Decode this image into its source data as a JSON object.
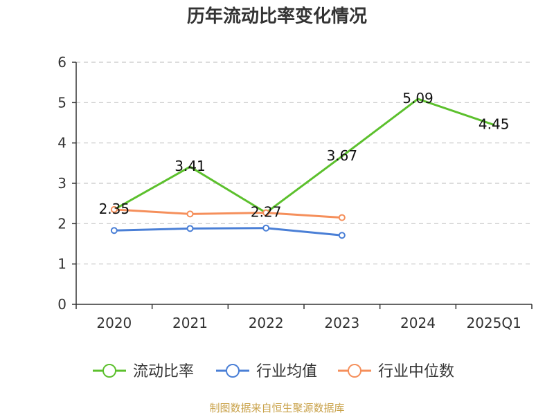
{
  "chart_data": {
    "type": "line",
    "title": "历年流动比率变化情况",
    "categories": [
      "2020",
      "2021",
      "2022",
      "2023",
      "2024",
      "2025Q1"
    ],
    "ylim": [
      0,
      6
    ],
    "yticks": [
      0,
      1,
      2,
      3,
      4,
      5,
      6
    ],
    "grid": true,
    "legend_position": "bottom",
    "series": [
      {
        "name": "流动比率",
        "color": "#5cc02d",
        "values": [
          2.35,
          3.41,
          2.27,
          3.67,
          5.09,
          4.45
        ],
        "labels": [
          "2.35",
          "3.41",
          "2.27",
          "3.67",
          "5.09",
          "4.45"
        ]
      },
      {
        "name": "行业均值",
        "color": "#4a7fd6",
        "values": [
          1.83,
          1.88,
          1.89,
          1.71,
          null,
          null
        ]
      },
      {
        "name": "行业中位数",
        "color": "#f58f5b",
        "values": [
          2.35,
          2.24,
          2.27,
          2.15,
          null,
          null
        ]
      }
    ]
  },
  "footer": {
    "source": "制图数据来自恒生聚源数据库"
  }
}
